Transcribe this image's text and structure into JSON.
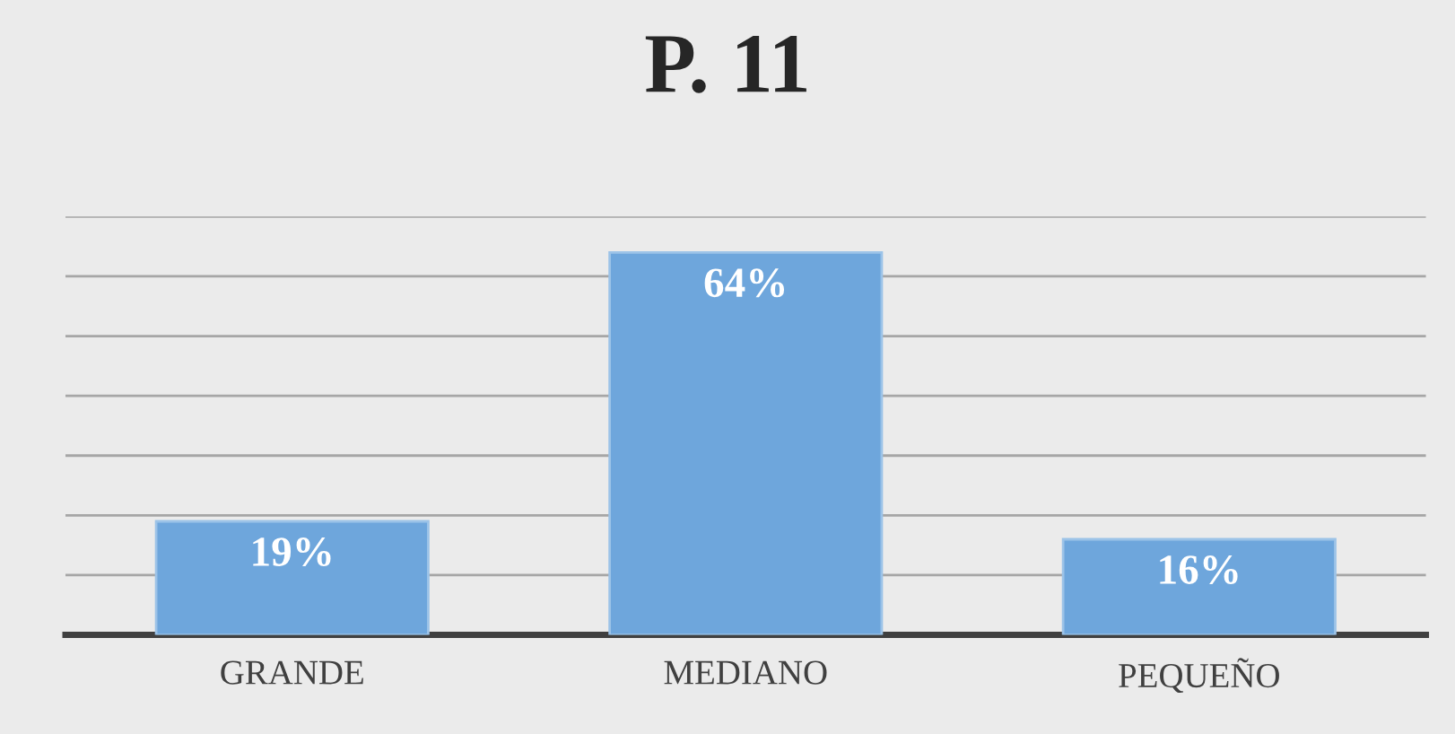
{
  "chart_data": {
    "type": "bar",
    "title": "P. 11",
    "categories": [
      "GRANDE",
      "MEDIANO",
      "PEQUEÑO"
    ],
    "values": [
      19,
      64,
      16
    ],
    "color": "#6ea6dc",
    "value_labels": [
      "19%",
      "64%",
      "16%"
    ],
    "ylim": [
      0,
      70
    ],
    "yticks": [
      {
        "value": 0,
        "label": null
      },
      {
        "value": 10,
        "label": null
      },
      {
        "value": 20,
        "label": null
      },
      {
        "value": 30,
        "label": null
      },
      {
        "value": 40,
        "label": null
      },
      {
        "value": 50,
        "label": null
      },
      {
        "value": 60,
        "label": null
      },
      {
        "value": 70,
        "label": null
      }
    ],
    "grid": "y",
    "tick_labels": "x"
  }
}
